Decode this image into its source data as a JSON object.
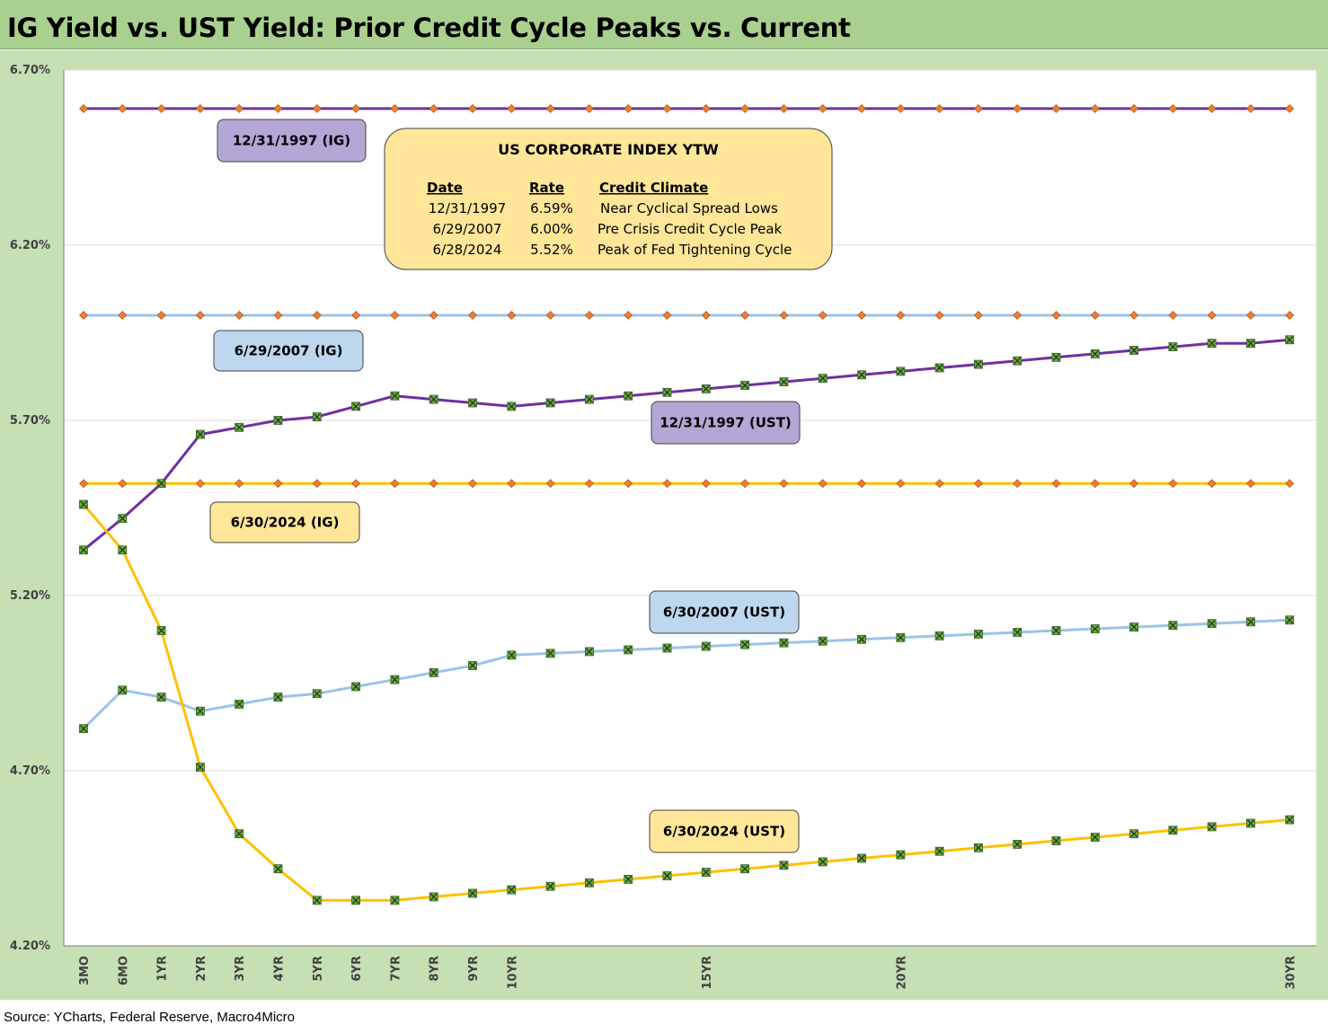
{
  "title": "IG Yield vs. UST Yield: Prior Credit Cycle Peaks vs. Current",
  "source": "Source: YCharts, Federal Reserve, Macro4Micro",
  "colors": {
    "purple": "#7030a0",
    "blue": "#9dc3e6",
    "gold": "#ffc000",
    "ig_marker": "#ed7d31",
    "ust_marker": "#70ad47",
    "purple_box": "#b4a7d6",
    "blue_box": "#bdd7ee",
    "gold_box": "#ffe699",
    "plot_bg": "#c6e0b4",
    "title_bg": "#a9d08e"
  },
  "chart_data": {
    "type": "line",
    "title": "IG Yield vs. UST Yield: Prior Credit Cycle Peaks vs. Current",
    "ylim": [
      4.2,
      6.7
    ],
    "y_ticks": [
      "6.70%",
      "6.20%",
      "5.70%",
      "5.20%",
      "4.70%",
      "4.20%"
    ],
    "y_tick_values": [
      6.7,
      6.2,
      5.7,
      5.2,
      4.7,
      4.2
    ],
    "x": [
      "3MO",
      "6MO",
      "1YR",
      "2YR",
      "3YR",
      "4YR",
      "5YR",
      "6YR",
      "7YR",
      "8YR",
      "9YR",
      "10YR",
      "11YR",
      "12YR",
      "13YR",
      "14YR",
      "15YR",
      "16YR",
      "17YR",
      "18YR",
      "19YR",
      "20YR",
      "21YR",
      "22YR",
      "23YR",
      "24YR",
      "25YR",
      "26YR",
      "27YR",
      "28YR",
      "29YR",
      "30YR"
    ],
    "x_tick_labels": {
      "0": "3MO",
      "1": "6MO",
      "2": "1YR",
      "3": "2YR",
      "4": "3YR",
      "5": "4YR",
      "6": "5YR",
      "7": "6YR",
      "8": "7YR",
      "9": "8YR",
      "10": "9YR",
      "11": "10YR",
      "16": "15YR",
      "21": "20YR",
      "31": "30YR"
    },
    "grid": true,
    "series": [
      {
        "name": "12/31/1997 (IG)",
        "kind": "ig",
        "color_key": "purple",
        "values": [
          6.59,
          6.59,
          6.59,
          6.59,
          6.59,
          6.59,
          6.59,
          6.59,
          6.59,
          6.59,
          6.59,
          6.59,
          6.59,
          6.59,
          6.59,
          6.59,
          6.59,
          6.59,
          6.59,
          6.59,
          6.59,
          6.59,
          6.59,
          6.59,
          6.59,
          6.59,
          6.59,
          6.59,
          6.59,
          6.59,
          6.59,
          6.59
        ]
      },
      {
        "name": "6/29/2007 (IG)",
        "kind": "ig",
        "color_key": "blue",
        "values": [
          6.0,
          6.0,
          6.0,
          6.0,
          6.0,
          6.0,
          6.0,
          6.0,
          6.0,
          6.0,
          6.0,
          6.0,
          6.0,
          6.0,
          6.0,
          6.0,
          6.0,
          6.0,
          6.0,
          6.0,
          6.0,
          6.0,
          6.0,
          6.0,
          6.0,
          6.0,
          6.0,
          6.0,
          6.0,
          6.0,
          6.0,
          6.0
        ]
      },
      {
        "name": "6/30/2024 (IG)",
        "kind": "ig",
        "color_key": "gold",
        "values": [
          5.52,
          5.52,
          5.52,
          5.52,
          5.52,
          5.52,
          5.52,
          5.52,
          5.52,
          5.52,
          5.52,
          5.52,
          5.52,
          5.52,
          5.52,
          5.52,
          5.52,
          5.52,
          5.52,
          5.52,
          5.52,
          5.52,
          5.52,
          5.52,
          5.52,
          5.52,
          5.52,
          5.52,
          5.52,
          5.52,
          5.52,
          5.52
        ]
      },
      {
        "name": "12/31/1997 (UST)",
        "kind": "ust",
        "color_key": "purple",
        "values": [
          5.33,
          5.42,
          5.52,
          5.66,
          5.68,
          5.7,
          5.71,
          5.74,
          5.77,
          5.76,
          5.75,
          5.74,
          5.75,
          5.76,
          5.77,
          5.78,
          5.79,
          5.8,
          5.81,
          5.82,
          5.83,
          5.84,
          5.85,
          5.86,
          5.87,
          5.88,
          5.89,
          5.9,
          5.91,
          5.92,
          5.92,
          5.93
        ]
      },
      {
        "name": "6/30/2007 (UST)",
        "kind": "ust",
        "color_key": "blue",
        "values": [
          4.82,
          4.93,
          4.91,
          4.87,
          4.89,
          4.91,
          4.92,
          4.94,
          4.96,
          4.98,
          5.0,
          5.03,
          5.035,
          5.04,
          5.045,
          5.05,
          5.055,
          5.06,
          5.065,
          5.07,
          5.075,
          5.08,
          5.085,
          5.09,
          5.095,
          5.1,
          5.105,
          5.11,
          5.115,
          5.12,
          5.125,
          5.13
        ]
      },
      {
        "name": "6/30/2024 (UST)",
        "kind": "ust",
        "color_key": "gold",
        "values": [
          5.46,
          5.33,
          5.1,
          4.71,
          4.52,
          4.42,
          4.33,
          4.33,
          4.33,
          4.34,
          4.35,
          4.36,
          4.37,
          4.38,
          4.39,
          4.4,
          4.41,
          4.42,
          4.43,
          4.44,
          4.45,
          4.46,
          4.47,
          4.48,
          4.49,
          4.5,
          4.51,
          4.52,
          4.53,
          4.54,
          4.55,
          4.56
        ]
      }
    ],
    "labels": [
      {
        "text": "12/31/1997 (IG)",
        "color_key": "purple_box"
      },
      {
        "text": "6/29/2007 (IG)",
        "color_key": "blue_box"
      },
      {
        "text": "6/30/2024 (IG)",
        "color_key": "gold_box"
      },
      {
        "text": "12/31/1997 (UST)",
        "color_key": "purple_box"
      },
      {
        "text": "6/30/2007 (UST)",
        "color_key": "blue_box"
      },
      {
        "text": "6/30/2024 (UST)",
        "color_key": "gold_box"
      }
    ],
    "info_box": {
      "title": "US CORPORATE INDEX YTW",
      "headers": [
        "Date",
        "Rate",
        "Credit Climate"
      ],
      "rows": [
        [
          "12/31/1997",
          "6.59%",
          "Near Cyclical Spread Lows"
        ],
        [
          "6/29/2007",
          "6.00%",
          "Pre Crisis Credit Cycle Peak"
        ],
        [
          "6/28/2024",
          "5.52%",
          "Peak of Fed Tightening Cycle"
        ]
      ]
    }
  }
}
